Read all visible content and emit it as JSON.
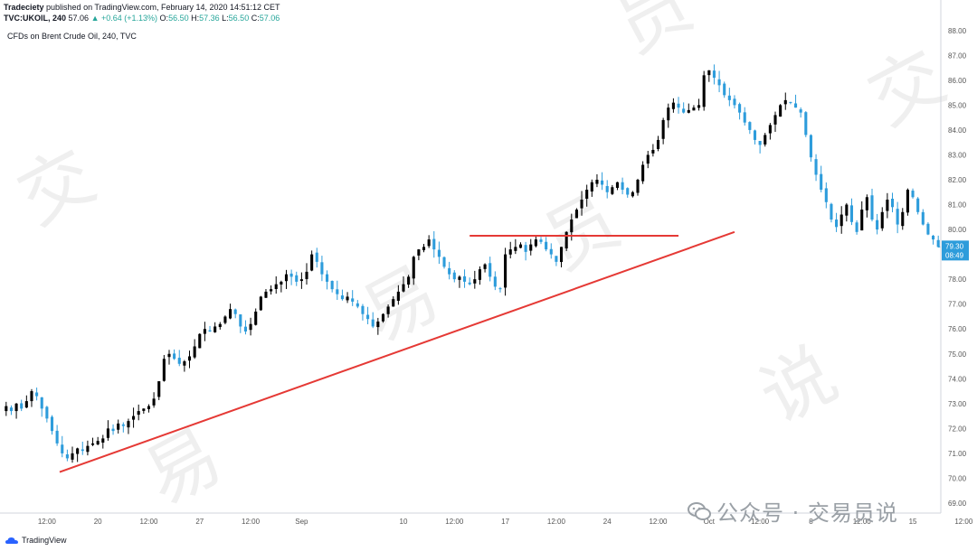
{
  "header": {
    "author": "Tradeciety",
    "published": " published on TradingView.com, February 14, 2020 14:51:12 CET",
    "symbol_interval": "TVC:UKOIL, 240",
    "last": "57.06",
    "change": "▲ +0.64 (+1.13%)",
    "o_label": "O:",
    "o": "56.50",
    "h_label": "H:",
    "h": "57.36",
    "l_label": "L:",
    "l": "56.50",
    "c_label": "C:",
    "c": "57.06"
  },
  "chart_title": "CFDs on Brent Crude Oil, 240, TVC",
  "footer": {
    "brand": "TradingView"
  },
  "watermark": {
    "text": "公众号 · 交易员说"
  },
  "colors": {
    "up": "#000000",
    "down": "#2d9cdb",
    "trendline": "#e53935",
    "price_badge": "#2d9cdb",
    "axis_text": "#555555",
    "grid": "#f0f3fa"
  },
  "price_badge": {
    "price": "79.30",
    "countdown": "08:49"
  },
  "chart_data": {
    "type": "candlestick",
    "y_ticks": [
      "88.00",
      "87.00",
      "86.00",
      "85.00",
      "84.00",
      "83.00",
      "82.00",
      "81.00",
      "80.00",
      "79.00",
      "78.00",
      "77.00",
      "76.00",
      "75.00",
      "74.00",
      "73.00",
      "72.00",
      "71.00",
      "70.00",
      "69.00"
    ],
    "ylim": [
      68.6,
      88.5
    ],
    "x_ticks": [
      {
        "label": "12:00",
        "i": 8
      },
      {
        "label": "20",
        "i": 18
      },
      {
        "label": "12:00",
        "i": 28
      },
      {
        "label": "27",
        "i": 38
      },
      {
        "label": "12:00",
        "i": 48
      },
      {
        "label": "Sep",
        "i": 58
      },
      {
        "label": "10",
        "i": 78
      },
      {
        "label": "12:00",
        "i": 88
      },
      {
        "label": "17",
        "i": 98
      },
      {
        "label": "12:00",
        "i": 108
      },
      {
        "label": "24",
        "i": 118
      },
      {
        "label": "12:00",
        "i": 128
      },
      {
        "label": "Oct",
        "i": 138
      },
      {
        "label": "12:00",
        "i": 148
      },
      {
        "label": "8",
        "i": 158
      },
      {
        "label": "12:00",
        "i": 168
      },
      {
        "label": "15",
        "i": 178
      },
      {
        "label": "12:00",
        "i": 188
      }
    ],
    "closes": [
      72.9,
      72.7,
      73.0,
      72.8,
      73.1,
      73.5,
      73.3,
      72.8,
      72.4,
      71.9,
      71.4,
      71.0,
      70.8,
      71.0,
      71.2,
      71.1,
      71.3,
      71.4,
      71.5,
      71.6,
      72.0,
      71.9,
      72.2,
      72.1,
      72.3,
      72.5,
      72.7,
      72.8,
      72.9,
      73.2,
      73.9,
      74.8,
      75.0,
      74.8,
      74.6,
      74.7,
      74.9,
      75.3,
      75.8,
      76.0,
      75.9,
      76.1,
      76.2,
      76.5,
      76.8,
      76.6,
      76.1,
      75.9,
      76.2,
      76.7,
      77.3,
      77.5,
      77.6,
      77.8,
      77.9,
      78.2,
      78.1,
      77.9,
      78.0,
      78.3,
      79.0,
      78.7,
      78.2,
      77.9,
      77.6,
      77.4,
      77.2,
      77.3,
      77.1,
      76.9,
      76.6,
      76.4,
      76.1,
      76.3,
      76.6,
      76.9,
      77.2,
      77.5,
      77.8,
      78.1,
      78.9,
      79.2,
      79.3,
      79.6,
      79.2,
      78.9,
      78.5,
      78.2,
      78.0,
      78.1,
      77.9,
      77.8,
      78.0,
      78.4,
      78.6,
      78.1,
      77.7,
      77.6,
      79.0,
      79.2,
      79.3,
      79.4,
      79.1,
      79.4,
      79.6,
      79.5,
      79.2,
      79.0,
      78.7,
      79.3,
      79.9,
      80.4,
      80.8,
      81.2,
      81.6,
      81.9,
      82.0,
      81.8,
      81.5,
      81.7,
      81.9,
      81.6,
      81.4,
      81.5,
      82.0,
      82.6,
      83.0,
      83.2,
      83.6,
      84.4,
      84.9,
      85.1,
      84.9,
      84.7,
      84.8,
      84.9,
      85.0,
      86.2,
      86.4,
      86.1,
      85.8,
      85.4,
      85.2,
      85.0,
      84.7,
      84.3,
      84.0,
      83.6,
      83.4,
      83.8,
      84.2,
      84.6,
      85.0,
      85.2,
      85.1,
      84.9,
      84.7,
      83.8,
      82.9,
      82.2,
      81.6,
      81.1,
      80.4,
      80.1,
      80.6,
      81.0,
      80.3,
      79.9,
      80.8,
      81.3,
      80.4,
      80.0,
      80.7,
      81.2,
      80.9,
      80.2,
      80.7,
      81.6,
      81.3,
      80.7,
      80.2,
      79.8,
      79.6,
      79.3
    ],
    "trendlines": [
      {
        "x1": 10.5,
        "y1": 70.25,
        "x2": 143,
        "y2": 79.9
      },
      {
        "x1": 91,
        "y1": 79.75,
        "x2": 132,
        "y2": 79.75
      }
    ]
  }
}
